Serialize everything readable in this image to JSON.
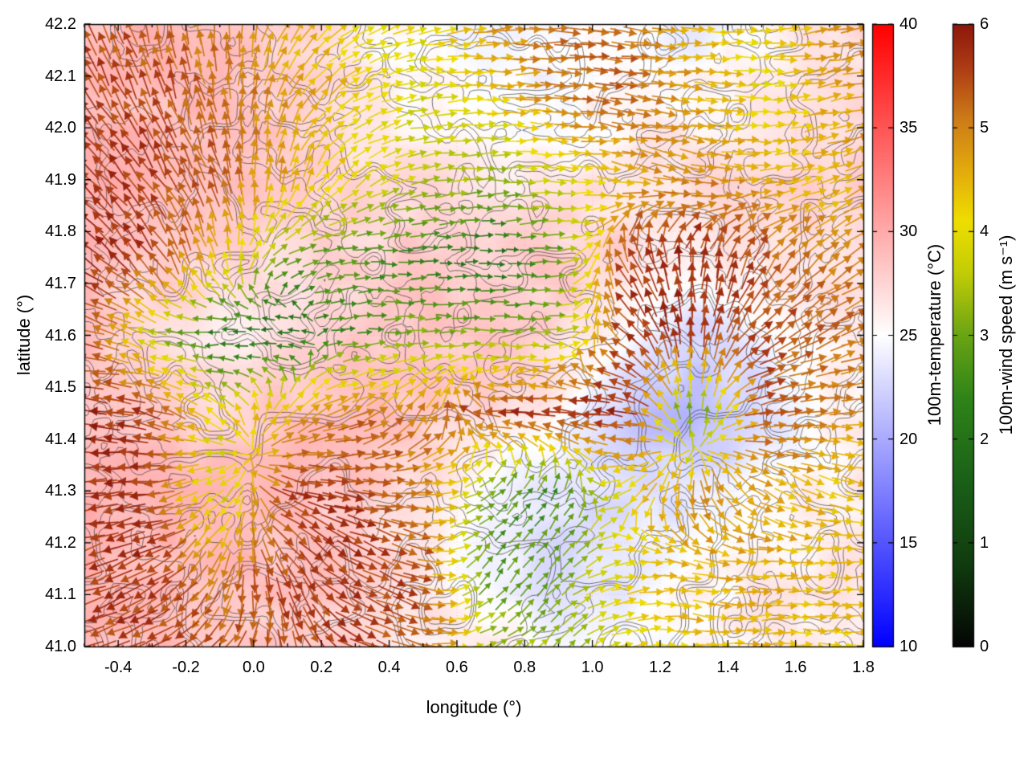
{
  "figure": {
    "xlabel": "longitude (°)",
    "ylabel": "latitude (°)",
    "x_range": [
      -0.5,
      1.8
    ],
    "y_range": [
      41.0,
      42.2
    ],
    "x_tick_labels": [
      "-0.4",
      "-0.2",
      "0.0",
      "0.2",
      "0.4",
      "0.6",
      "0.8",
      "1.0",
      "1.2",
      "1.4",
      "1.6",
      "1.8"
    ],
    "y_tick_labels": [
      "41.0",
      "41.1",
      "41.2",
      "41.3",
      "41.4",
      "41.5",
      "41.6",
      "41.7",
      "41.8",
      "41.9",
      "42.0",
      "42.1",
      "42.2"
    ]
  },
  "colorbars": [
    {
      "id": "temperature",
      "label": "100m-temperature (°C)",
      "tick_labels": [
        "10",
        "15",
        "20",
        "25",
        "30",
        "35",
        "40"
      ],
      "range": [
        10,
        40
      ],
      "stops": [
        [
          10,
          "#0000ff"
        ],
        [
          25,
          "#ffffff"
        ],
        [
          40,
          "#ff0000"
        ]
      ]
    },
    {
      "id": "wind-speed",
      "label": "100m-wind speed (m s⁻¹)",
      "tick_labels": [
        "0",
        "1",
        "2",
        "3",
        "4",
        "5",
        "6"
      ],
      "range": [
        0,
        6
      ],
      "stops": [
        [
          0,
          "#050505"
        ],
        [
          0.8,
          "#103c0e"
        ],
        [
          1.6,
          "#1a6018"
        ],
        [
          2.4,
          "#2f8418"
        ],
        [
          3.0,
          "#6aa414"
        ],
        [
          3.6,
          "#c2cc06"
        ],
        [
          4.1,
          "#eede00"
        ],
        [
          4.6,
          "#e2aa0c"
        ],
        [
          5.1,
          "#cc7a18"
        ],
        [
          5.6,
          "#ac3a14"
        ],
        [
          6,
          "#8d180c"
        ]
      ]
    }
  ],
  "chart_data": {
    "type": "heatmap",
    "title": "",
    "xlabel": "longitude (°)",
    "ylabel": "latitude (°)",
    "overlays": [
      "terrain-contours",
      "wind-vector-arrows"
    ],
    "lon_nodes": [
      -0.5,
      -0.3,
      -0.1,
      0.1,
      0.3,
      0.5,
      0.7,
      0.9,
      1.1,
      1.3,
      1.5,
      1.7,
      1.9
    ],
    "lat_nodes": [
      42.2,
      42.05,
      41.9,
      41.75,
      41.6,
      41.45,
      41.3,
      41.15,
      41.0
    ],
    "temperature_c": [
      [
        29,
        29,
        28.5,
        28,
        26.5,
        25,
        24.5,
        24.5,
        25,
        24,
        25.5,
        27,
        27.5
      ],
      [
        29,
        29,
        28.5,
        28,
        26,
        25,
        24.5,
        25,
        25.5,
        25.5,
        26,
        26.5,
        27
      ],
      [
        29.5,
        29,
        28.5,
        28,
        27.5,
        27,
        26.5,
        26,
        26.5,
        27,
        27,
        27.5,
        27.5
      ],
      [
        29,
        28,
        27,
        27.5,
        27.5,
        28,
        28,
        28,
        27.5,
        26,
        26.5,
        27,
        27
      ],
      [
        28.5,
        27,
        26,
        26.5,
        28,
        28.5,
        28.5,
        27.5,
        25,
        22.5,
        24,
        26,
        26.5
      ],
      [
        29,
        28,
        27.5,
        28.5,
        29,
        28.5,
        27,
        25.5,
        22,
        20.5,
        23,
        25.5,
        26
      ],
      [
        29.5,
        29,
        29,
        28.5,
        28,
        26.5,
        24.5,
        23.5,
        23,
        23.5,
        25,
        26,
        26.5
      ],
      [
        29.5,
        29,
        29,
        28.5,
        28,
        26.5,
        24.5,
        23,
        23.5,
        25,
        26,
        26,
        26.5
      ],
      [
        29,
        29,
        28.5,
        28,
        27.5,
        26.5,
        25.5,
        24.5,
        24.5,
        25.5,
        26,
        26.5,
        26.5
      ]
    ],
    "wind_speed_ms": [
      [
        5.5,
        5.3,
        5.0,
        4.5,
        4.2,
        4.0,
        4.8,
        5.4,
        5.2,
        4.5,
        4.0,
        4.8,
        5.5
      ],
      [
        5.6,
        5.5,
        5.2,
        4.8,
        4.2,
        3.8,
        4.2,
        5.0,
        5.3,
        4.6,
        4.0,
        4.6,
        5.2
      ],
      [
        5.7,
        5.6,
        5.3,
        4.6,
        4.0,
        3.6,
        3.2,
        3.8,
        4.6,
        5.0,
        4.6,
        4.4,
        5.0
      ],
      [
        5.8,
        5.6,
        4.5,
        3.0,
        2.6,
        2.4,
        1.8,
        2.8,
        5.6,
        5.8,
        5.4,
        5.0,
        5.2
      ],
      [
        5.6,
        3.6,
        2.0,
        1.8,
        2.6,
        3.2,
        3.0,
        3.4,
        5.6,
        5.8,
        5.5,
        5.2,
        5.4
      ],
      [
        5.8,
        5.6,
        4.0,
        4.5,
        5.2,
        5.0,
        5.6,
        5.8,
        5.8,
        2.5,
        5.4,
        5.0,
        4.6
      ],
      [
        5.8,
        5.7,
        3.5,
        5.6,
        5.6,
        5.0,
        2.8,
        2.5,
        4.0,
        5.0,
        4.6,
        4.4,
        4.4
      ],
      [
        5.6,
        5.7,
        5.0,
        5.5,
        5.7,
        5.4,
        2.6,
        3.0,
        4.2,
        4.5,
        4.6,
        4.4,
        4.5
      ],
      [
        5.5,
        5.6,
        5.4,
        5.5,
        5.6,
        5.2,
        3.5,
        3.2,
        4.0,
        4.4,
        4.5,
        4.3,
        4.4
      ]
    ],
    "wind_dir_deg": [
      [
        115,
        105,
        95,
        60,
        30,
        10,
        5,
        0,
        -5,
        0,
        5,
        10,
        10
      ],
      [
        125,
        115,
        100,
        70,
        30,
        10,
        0,
        -5,
        -10,
        -5,
        0,
        10,
        15
      ],
      [
        135,
        125,
        110,
        80,
        40,
        10,
        0,
        0,
        -10,
        -15,
        0,
        20,
        25
      ],
      [
        140,
        125,
        100,
        20,
        5,
        0,
        0,
        0,
        120,
        90,
        60,
        40,
        30
      ],
      [
        170,
        160,
        190,
        180,
        5,
        0,
        0,
        0,
        138,
        90,
        42,
        24,
        17
      ],
      [
        175,
        165,
        140,
        40,
        23,
        60,
        178,
        176,
        171,
        90,
        8,
        4,
        3
      ],
      [
        185,
        185,
        220,
        -20,
        -10,
        -5,
        30,
        60,
        211,
        270,
        -31,
        -20,
        -15
      ],
      [
        200,
        210,
        250,
        300,
        -30,
        -20,
        60,
        45,
        10,
        -10,
        0,
        5,
        0
      ],
      [
        195,
        205,
        230,
        280,
        -25,
        -15,
        20,
        50,
        15,
        -5,
        5,
        0,
        5
      ]
    ]
  }
}
